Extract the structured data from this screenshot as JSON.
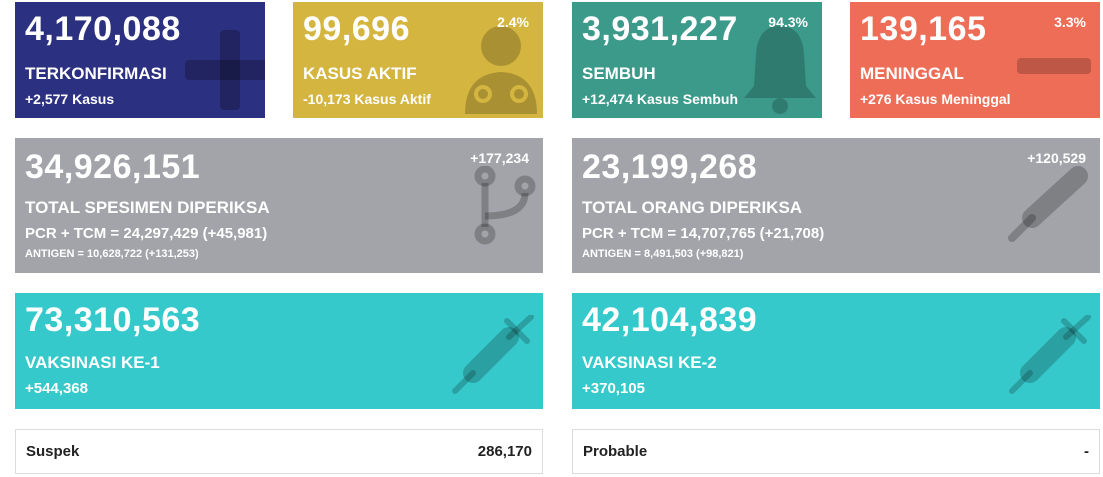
{
  "cards": [
    {
      "value": "4,170,088",
      "label": "TERKONFIRMASI",
      "change": "+2,577 Kasus"
    },
    {
      "value": "99,696",
      "percent": "2.4%",
      "label": "KASUS AKTIF",
      "change": "-10,173 Kasus Aktif"
    },
    {
      "value": "3,931,227",
      "percent": "94.3%",
      "label": "SEMBUH",
      "change": "+12,474 Kasus Sembuh"
    },
    {
      "value": "139,165",
      "percent": "3.3%",
      "label": "MENINGGAL",
      "change": "+276 Kasus Meninggal"
    }
  ],
  "tests": [
    {
      "value": "34,926,151",
      "change": "+177,234",
      "label": "TOTAL SPESIMEN DIPERIKSA",
      "pcr": "PCR + TCM = 24,297,429 (+45,981)",
      "antigen": "ANTIGEN = 10,628,722 (+131,253)"
    },
    {
      "value": "23,199,268",
      "change": "+120,529",
      "label": "TOTAL ORANG DIPERIKSA",
      "pcr": "PCR + TCM = 14,707,765 (+21,708)",
      "antigen": "ANTIGEN = 8,491,503 (+98,821)"
    }
  ],
  "vaccines": [
    {
      "value": "73,310,563",
      "label": "VAKSINASI KE-1",
      "change": "+544,368"
    },
    {
      "value": "42,104,839",
      "label": "VAKSINASI KE-2",
      "change": "+370,105"
    }
  ],
  "others": [
    {
      "label": "Suspek",
      "value": "286,170"
    },
    {
      "label": "Probable",
      "value": "-"
    }
  ]
}
